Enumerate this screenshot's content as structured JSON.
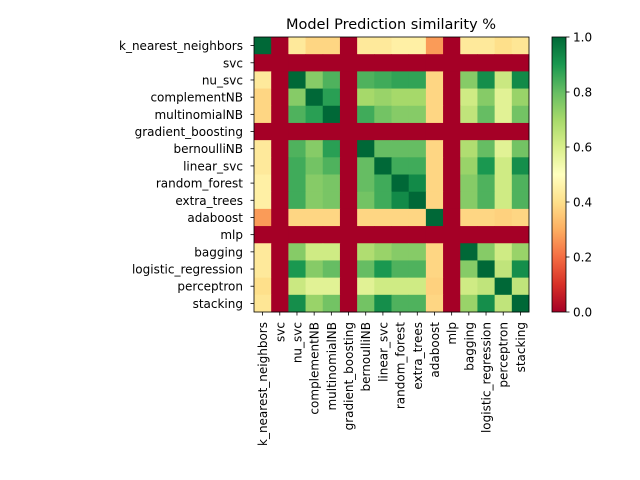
{
  "chart_data": {
    "type": "heatmap",
    "title": "Model Prediction similarity %",
    "labels": [
      "k_nearest_neighbors",
      "svc",
      "nu_svc",
      "complementNB",
      "multinomialNB",
      "gradient_boosting",
      "bernoulliNB",
      "linear_svc",
      "random_forest",
      "extra_trees",
      "adaboost",
      "mlp",
      "bagging",
      "logistic_regression",
      "perceptron",
      "stacking"
    ],
    "values": [
      [
        1.0,
        0.0,
        0.43,
        0.38,
        0.38,
        0.0,
        0.43,
        0.43,
        0.45,
        0.45,
        0.27,
        0.0,
        0.43,
        0.43,
        0.4,
        0.42
      ],
      [
        0.0,
        0.0,
        0.0,
        0.0,
        0.0,
        0.0,
        0.0,
        0.0,
        0.0,
        0.0,
        0.0,
        0.0,
        0.0,
        0.0,
        0.0,
        0.0
      ],
      [
        0.43,
        0.0,
        1.0,
        0.75,
        0.83,
        0.0,
        0.83,
        0.85,
        0.87,
        0.87,
        0.38,
        0.0,
        0.75,
        0.92,
        0.63,
        0.93
      ],
      [
        0.38,
        0.0,
        0.75,
        1.0,
        0.88,
        0.0,
        0.7,
        0.72,
        0.7,
        0.7,
        0.38,
        0.0,
        0.62,
        0.75,
        0.58,
        0.72
      ],
      [
        0.38,
        0.0,
        0.83,
        0.88,
        1.0,
        0.0,
        0.85,
        0.78,
        0.75,
        0.75,
        0.38,
        0.0,
        0.65,
        0.8,
        0.58,
        0.78
      ],
      [
        0.0,
        0.0,
        0.0,
        0.0,
        0.0,
        0.0,
        0.0,
        0.0,
        0.0,
        0.0,
        0.0,
        0.0,
        0.0,
        0.0,
        0.0,
        0.0
      ],
      [
        0.43,
        0.0,
        0.83,
        0.75,
        0.88,
        0.0,
        1.0,
        0.8,
        0.8,
        0.8,
        0.38,
        0.0,
        0.68,
        0.8,
        0.58,
        0.78
      ],
      [
        0.43,
        0.0,
        0.85,
        0.78,
        0.83,
        0.0,
        0.8,
        1.0,
        0.85,
        0.85,
        0.38,
        0.0,
        0.72,
        0.9,
        0.62,
        0.92
      ],
      [
        0.45,
        0.0,
        0.85,
        0.75,
        0.77,
        0.0,
        0.8,
        0.85,
        1.0,
        0.93,
        0.38,
        0.0,
        0.75,
        0.83,
        0.62,
        0.83
      ],
      [
        0.45,
        0.0,
        0.85,
        0.75,
        0.77,
        0.0,
        0.78,
        0.85,
        0.93,
        1.0,
        0.38,
        0.0,
        0.75,
        0.83,
        0.62,
        0.83
      ],
      [
        0.27,
        0.0,
        0.38,
        0.38,
        0.38,
        0.0,
        0.38,
        0.38,
        0.38,
        0.38,
        1.0,
        0.0,
        0.38,
        0.38,
        0.37,
        0.38
      ],
      [
        0.0,
        0.0,
        0.0,
        0.0,
        0.0,
        0.0,
        0.0,
        0.0,
        0.0,
        0.0,
        0.0,
        0.0,
        0.0,
        0.0,
        0.0,
        0.0
      ],
      [
        0.43,
        0.0,
        0.75,
        0.62,
        0.62,
        0.0,
        0.68,
        0.72,
        0.75,
        0.75,
        0.38,
        0.0,
        1.0,
        0.75,
        0.62,
        0.72
      ],
      [
        0.43,
        0.0,
        0.9,
        0.75,
        0.8,
        0.0,
        0.8,
        0.9,
        0.83,
        0.83,
        0.38,
        0.0,
        0.75,
        1.0,
        0.65,
        0.92
      ],
      [
        0.4,
        0.0,
        0.63,
        0.58,
        0.58,
        0.0,
        0.58,
        0.62,
        0.62,
        0.62,
        0.37,
        0.0,
        0.62,
        0.65,
        1.0,
        0.65
      ],
      [
        0.42,
        0.0,
        0.92,
        0.72,
        0.78,
        0.0,
        0.78,
        0.92,
        0.83,
        0.83,
        0.38,
        0.0,
        0.72,
        0.92,
        0.65,
        1.0
      ]
    ],
    "colorbar": {
      "min": 0.0,
      "max": 1.0,
      "ticks": [
        "0.0",
        "0.2",
        "0.4",
        "0.6",
        "0.8",
        "1.0"
      ],
      "colormap": "RdYlGn",
      "stops": [
        "#a50026",
        "#d73027",
        "#f46d43",
        "#fdae61",
        "#fee08b",
        "#ffffbf",
        "#d9ef8b",
        "#a6d96a",
        "#66bd63",
        "#1a9850",
        "#006837"
      ]
    }
  }
}
